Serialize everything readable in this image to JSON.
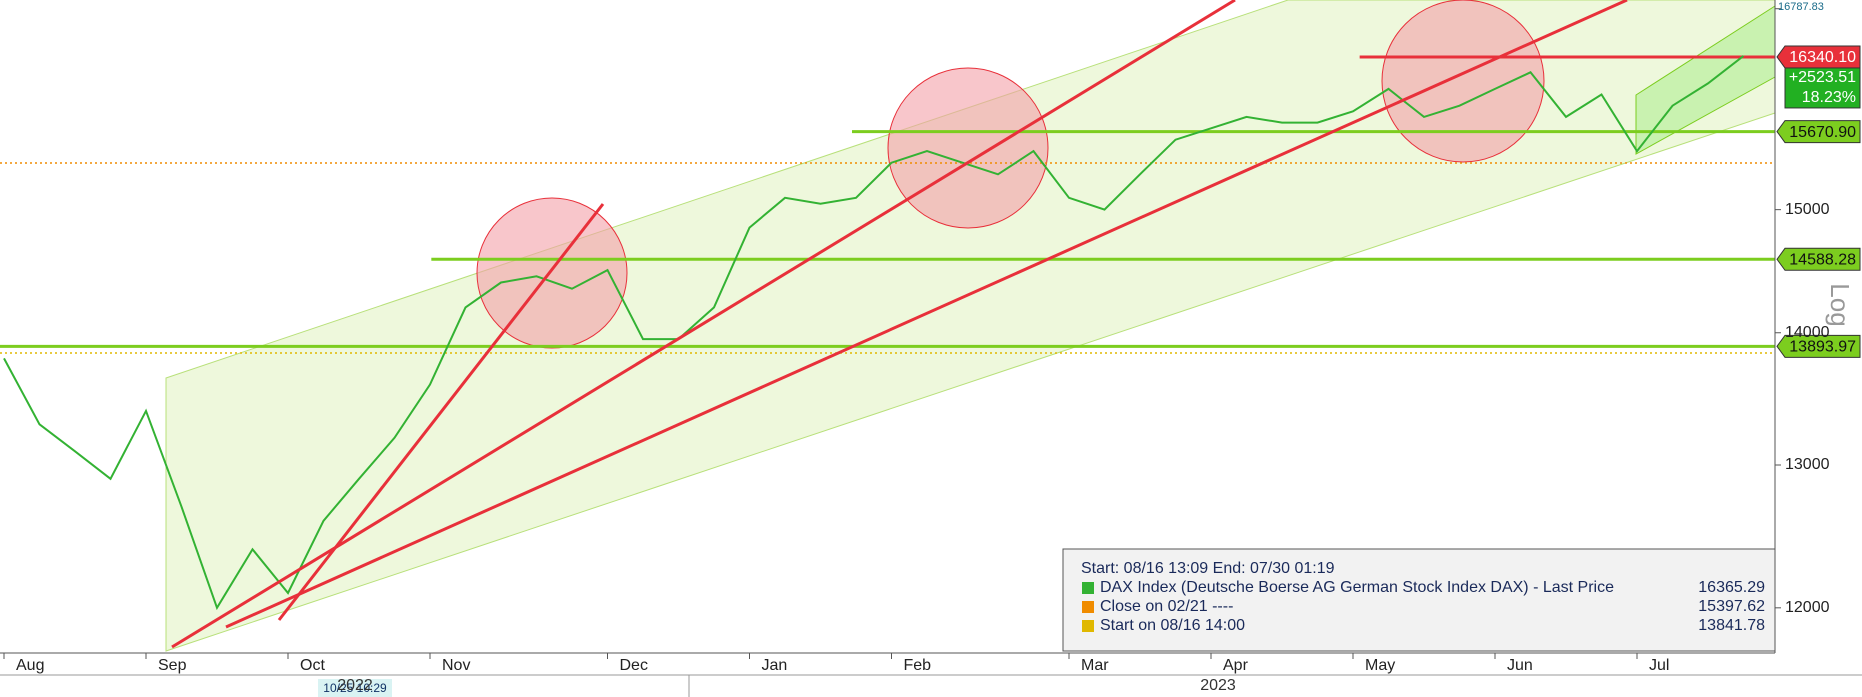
{
  "chart_data": {
    "type": "line",
    "categories": [
      "Aug",
      null,
      null,
      null,
      "Sep",
      null,
      null,
      null,
      "Oct",
      null,
      null,
      null,
      "Nov",
      null,
      null,
      null,
      null,
      "Dec",
      null,
      null,
      null,
      "Jan",
      null,
      null,
      null,
      "Feb",
      null,
      null,
      null,
      null,
      "Mar",
      null,
      null,
      null,
      "Apr",
      null,
      null,
      null,
      "May",
      null,
      null,
      null,
      "Jun",
      null,
      null,
      null,
      "Jul",
      null,
      null,
      null
    ],
    "series": [
      {
        "name": "DAX Index (Deutsche Boerse AG German Stock Index DAX) - Last Price",
        "color": "#33b233",
        "last": 16365.29,
        "values": [
          13800,
          13300,
          13100,
          12900,
          13400,
          12700,
          12000,
          12400,
          12100,
          12600,
          12900,
          13200,
          13600,
          14200,
          14400,
          14450,
          14350,
          14500,
          13950,
          13950,
          14200,
          14850,
          15100,
          15050,
          15100,
          15400,
          15500,
          15400,
          15300,
          15500,
          15100,
          15000,
          15300,
          15600,
          15700,
          15800,
          15750,
          15750,
          15850,
          16050,
          15800,
          15900,
          16050,
          16200,
          15800,
          16000,
          15500,
          15900,
          16100,
          16350
        ]
      }
    ],
    "log": true,
    "ylim": [
      11700,
      16870
    ],
    "yticks": [
      12000,
      13000,
      14000,
      15000,
      16787.83
    ],
    "y_label": "Log",
    "levels": [
      {
        "value": 16340.1,
        "label": "16340.10",
        "color": "#e8303a"
      },
      {
        "value": 15670.9,
        "label": "15670.90",
        "color": "#7ccd1f"
      },
      {
        "value": 14588.28,
        "label": "14588.28",
        "color": "#7ccd1f"
      },
      {
        "value": 13893.97,
        "label": "13893.97",
        "color": "#7ccd1f"
      }
    ],
    "change": {
      "value": 2523.51,
      "label": "+2523.51"
    },
    "change_pct": {
      "value": 18.23,
      "label": "18.23%"
    },
    "references": [
      {
        "name": "Close on 02/21 ----",
        "value": 15397.62,
        "color": "#f08c00"
      },
      {
        "name": "Start on 08/16 14:00",
        "value": 13841.78,
        "color": "#e0b800"
      }
    ],
    "range_label": "Start: 08/16 13:09 End: 07/30 01:19",
    "cursor_label": "10/25 10:29",
    "years": [
      "2022",
      "2023"
    ]
  }
}
